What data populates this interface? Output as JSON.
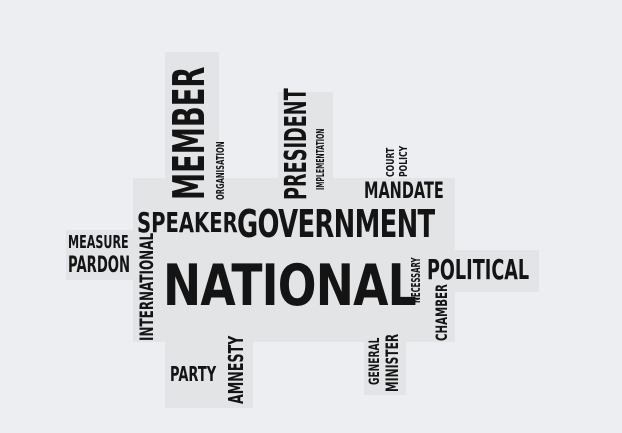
{
  "cloud": {
    "words": [
      {
        "text": "NATIONAL"
      },
      {
        "text": "GOVERNMENT"
      },
      {
        "text": "MEMBER"
      },
      {
        "text": "SPEAKER"
      },
      {
        "text": "PRESIDENT"
      },
      {
        "text": "IMPLEMENTATION"
      },
      {
        "text": "ORGANISATION"
      },
      {
        "text": "MANDATE"
      },
      {
        "text": "POLITICAL"
      },
      {
        "text": "MEASURE"
      },
      {
        "text": "PARDON"
      },
      {
        "text": "INTERNATIONAL"
      },
      {
        "text": "PARTY"
      },
      {
        "text": "AMNESTY"
      },
      {
        "text": "GENERAL"
      },
      {
        "text": "MINISTER"
      },
      {
        "text": "NECESSARY"
      },
      {
        "text": "CHAMBER"
      },
      {
        "text": "COURT"
      },
      {
        "text": "POLICY"
      }
    ]
  }
}
